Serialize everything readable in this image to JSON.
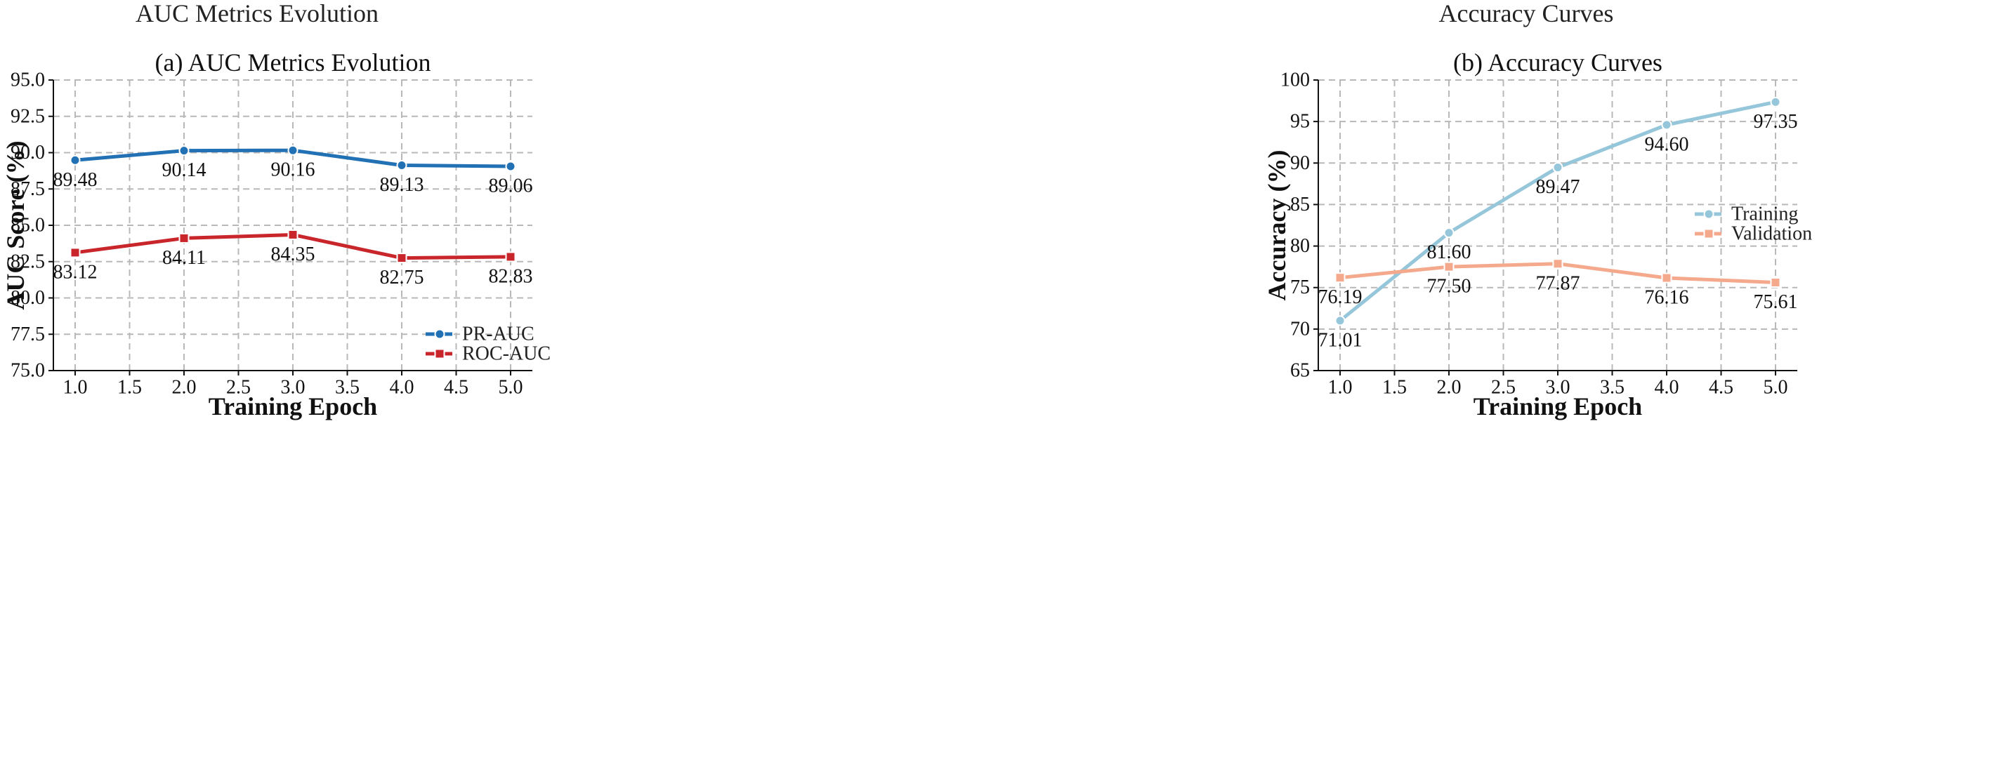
{
  "chart_data": [
    {
      "type": "line",
      "suptitle": "AUC Metrics Evolution",
      "title": "(a) AUC Metrics Evolution",
      "xlabel": "Training Epoch",
      "ylabel": "AUC Score (%)",
      "xlim": [
        0.8,
        5.2
      ],
      "ylim": [
        75.0,
        95.0
      ],
      "xticks": [
        1.0,
        1.5,
        2.0,
        2.5,
        3.0,
        3.5,
        4.0,
        4.5,
        5.0
      ],
      "xtick_labels": [
        "1.0",
        "1.5",
        "2.0",
        "2.5",
        "3.0",
        "3.5",
        "4.0",
        "4.5",
        "5.0"
      ],
      "yticks": [
        75.0,
        77.5,
        80.0,
        82.5,
        85.0,
        87.5,
        90.0,
        92.5,
        95.0
      ],
      "ytick_labels": [
        "75.0",
        "77.5",
        "80.0",
        "82.5",
        "85.0",
        "87.5",
        "90.0",
        "92.5",
        "95.0"
      ],
      "grid": true,
      "legend_position": "bottom-right",
      "x": [
        1,
        2,
        3,
        4,
        5
      ],
      "series": [
        {
          "name": "PR-AUC",
          "color": "#2271b5",
          "marker": "circle",
          "values": [
            89.48,
            90.14,
            90.16,
            89.13,
            89.06
          ],
          "labels": [
            "89.48",
            "90.14",
            "90.16",
            "89.13",
            "89.06"
          ]
        },
        {
          "name": "ROC-AUC",
          "color": "#c9262b",
          "marker": "square",
          "values": [
            83.12,
            84.11,
            84.35,
            82.75,
            82.83
          ],
          "labels": [
            "83.12",
            "84.11",
            "84.35",
            "82.75",
            "82.83"
          ]
        }
      ]
    },
    {
      "type": "line",
      "suptitle": "Accuracy Curves",
      "title": "(b) Accuracy Curves",
      "xlabel": "Training Epoch",
      "ylabel": "Accuracy (%)",
      "xlim": [
        0.8,
        5.2
      ],
      "ylim": [
        65,
        100
      ],
      "xticks": [
        1.0,
        1.5,
        2.0,
        2.5,
        3.0,
        3.5,
        4.0,
        4.5,
        5.0
      ],
      "xtick_labels": [
        "1.0",
        "1.5",
        "2.0",
        "2.5",
        "3.0",
        "3.5",
        "4.0",
        "4.5",
        "5.0"
      ],
      "yticks": [
        65,
        70,
        75,
        80,
        85,
        90,
        95,
        100
      ],
      "ytick_labels": [
        "65",
        "70",
        "75",
        "80",
        "85",
        "90",
        "95",
        "100"
      ],
      "grid": true,
      "legend_position": "center-right",
      "x": [
        1,
        2,
        3,
        4,
        5
      ],
      "series": [
        {
          "name": "Training",
          "color": "#95c6da",
          "marker": "circle",
          "values": [
            71.01,
            81.6,
            89.47,
            94.6,
            97.35
          ],
          "labels": [
            "71.01",
            "81.60",
            "89.47",
            "94.60",
            "97.35"
          ]
        },
        {
          "name": "Validation",
          "color": "#f4a98c",
          "marker": "square",
          "values": [
            76.19,
            77.5,
            77.87,
            76.16,
            75.61
          ],
          "labels": [
            "76.19",
            "77.50",
            "77.87",
            "76.16",
            "75.61"
          ]
        }
      ]
    }
  ]
}
